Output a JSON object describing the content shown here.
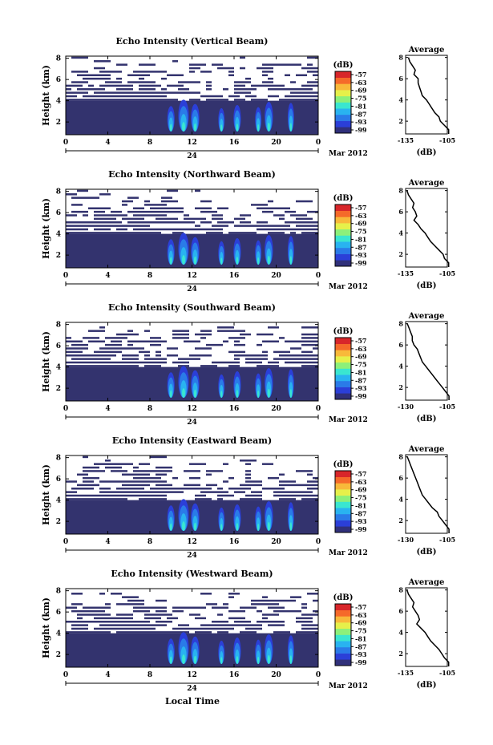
{
  "figure": {
    "x_axis_title": "Local Time",
    "date_label": "Mar 2012",
    "unit_label": "(dB)",
    "avg_title": "Average",
    "x_ticks": [
      "0",
      "4",
      "8",
      "12",
      "16",
      "20",
      "0"
    ],
    "day_label": "24",
    "height_ticks": [
      "2",
      "4",
      "6",
      "8"
    ],
    "colorbar_ticks": [
      "-57",
      "-63",
      "-69",
      "-75",
      "-81",
      "-87",
      "-93",
      "-99"
    ],
    "colors": {
      "noise": "#33336e",
      "colormap": [
        "#30307a",
        "#2b3fd8",
        "#2a7be8",
        "#29b3f0",
        "#3ae6d0",
        "#8cf07a",
        "#e6f04a",
        "#f8b93a",
        "#f56a2a",
        "#d8262a"
      ]
    }
  },
  "chart_data": [
    {
      "type": "heatmap",
      "title": "Echo Intensity (Vertical Beam)",
      "ylabel": "Height (km)",
      "xlim": [
        0,
        24
      ],
      "ylim": [
        0.8,
        8.2
      ],
      "clim": [
        -99,
        -57
      ],
      "profile": {
        "xlim": [
          -135,
          -105
        ],
        "xtick_labels": [
          "-135",
          "-105"
        ],
        "xlabel": "(dB)",
        "points": [
          [
            -104,
            0.8
          ],
          [
            -104,
            1.2
          ],
          [
            -107,
            1.6
          ],
          [
            -110,
            2.0
          ],
          [
            -111,
            2.4
          ],
          [
            -114,
            2.8
          ],
          [
            -116,
            3.2
          ],
          [
            -118,
            3.6
          ],
          [
            -120,
            4.0
          ],
          [
            -123,
            4.4
          ],
          [
            -124,
            4.8
          ],
          [
            -125,
            5.2
          ],
          [
            -126,
            5.6
          ],
          [
            -126,
            6.0
          ],
          [
            -129,
            6.4
          ],
          [
            -128,
            6.8
          ],
          [
            -130,
            7.2
          ],
          [
            -132,
            7.6
          ],
          [
            -133,
            8.0
          ]
        ]
      }
    },
    {
      "type": "heatmap",
      "title": "Echo Intensity (Northward Beam)",
      "ylabel": "Height (km)",
      "xlim": [
        0,
        24
      ],
      "ylim": [
        0.8,
        8.2
      ],
      "clim": [
        -99,
        -57
      ],
      "profile": {
        "xlim": [
          -135,
          -105
        ],
        "xtick_labels": [
          "-135",
          "-105"
        ],
        "xlabel": "(dB)",
        "points": [
          [
            -104,
            0.8
          ],
          [
            -104,
            1.2
          ],
          [
            -107,
            1.6
          ],
          [
            -108,
            2.0
          ],
          [
            -111,
            2.4
          ],
          [
            -114,
            2.8
          ],
          [
            -117,
            3.2
          ],
          [
            -119,
            3.6
          ],
          [
            -121,
            4.0
          ],
          [
            -124,
            4.4
          ],
          [
            -126,
            4.8
          ],
          [
            -129,
            5.2
          ],
          [
            -127,
            5.6
          ],
          [
            -128,
            6.0
          ],
          [
            -130,
            6.4
          ],
          [
            -129,
            6.8
          ],
          [
            -131,
            7.2
          ],
          [
            -133,
            7.6
          ],
          [
            -134,
            8.0
          ]
        ]
      }
    },
    {
      "type": "heatmap",
      "title": "Echo Intensity (Southward Beam)",
      "ylabel": "Height (km)",
      "xlim": [
        0,
        24
      ],
      "ylim": [
        0.8,
        8.2
      ],
      "clim": [
        -99,
        -57
      ],
      "profile": {
        "xlim": [
          -130,
          -105
        ],
        "xtick_labels": [
          "-130",
          "-105"
        ],
        "xlabel": "(dB)",
        "points": [
          [
            -104,
            0.8
          ],
          [
            -104,
            1.2
          ],
          [
            -106,
            1.6
          ],
          [
            -108,
            2.0
          ],
          [
            -110,
            2.4
          ],
          [
            -112,
            2.8
          ],
          [
            -114,
            3.2
          ],
          [
            -116,
            3.6
          ],
          [
            -118,
            4.0
          ],
          [
            -120,
            4.4
          ],
          [
            -121,
            4.8
          ],
          [
            -122,
            5.2
          ],
          [
            -123,
            5.6
          ],
          [
            -125,
            6.0
          ],
          [
            -126,
            6.4
          ],
          [
            -126,
            6.8
          ],
          [
            -127,
            7.2
          ],
          [
            -128,
            7.6
          ],
          [
            -129,
            8.0
          ]
        ]
      }
    },
    {
      "type": "heatmap",
      "title": "Echo Intensity (Eastward Beam)",
      "ylabel": "Height (km)",
      "xlim": [
        0,
        24
      ],
      "ylim": [
        0.8,
        8.2
      ],
      "clim": [
        -99,
        -57
      ],
      "profile": {
        "xlim": [
          -130,
          -105
        ],
        "xtick_labels": [
          "-130",
          "-105"
        ],
        "xlabel": "(dB)",
        "points": [
          [
            -104,
            0.8
          ],
          [
            -104,
            1.2
          ],
          [
            -106,
            1.6
          ],
          [
            -108,
            2.0
          ],
          [
            -110,
            2.4
          ],
          [
            -111,
            2.8
          ],
          [
            -114,
            3.2
          ],
          [
            -116,
            3.6
          ],
          [
            -118,
            4.0
          ],
          [
            -120,
            4.4
          ],
          [
            -121,
            4.8
          ],
          [
            -122,
            5.2
          ],
          [
            -123,
            5.6
          ],
          [
            -124,
            6.0
          ],
          [
            -125,
            6.4
          ],
          [
            -126,
            6.8
          ],
          [
            -127,
            7.2
          ],
          [
            -128,
            7.6
          ],
          [
            -129,
            8.0
          ]
        ]
      }
    },
    {
      "type": "heatmap",
      "title": "Echo Intensity (Westward Beam)",
      "ylabel": "Height (km)",
      "xlim": [
        0,
        24
      ],
      "ylim": [
        0.8,
        8.2
      ],
      "clim": [
        -99,
        -57
      ],
      "profile": {
        "xlim": [
          -135,
          -105
        ],
        "xtick_labels": [
          "-135",
          "-105"
        ],
        "xlabel": "(dB)",
        "points": [
          [
            -104,
            0.8
          ],
          [
            -104,
            1.2
          ],
          [
            -107,
            1.6
          ],
          [
            -109,
            2.0
          ],
          [
            -111,
            2.4
          ],
          [
            -114,
            2.8
          ],
          [
            -117,
            3.2
          ],
          [
            -119,
            3.6
          ],
          [
            -121,
            4.0
          ],
          [
            -124,
            4.4
          ],
          [
            -127,
            4.8
          ],
          [
            -125,
            5.2
          ],
          [
            -126,
            5.6
          ],
          [
            -128,
            6.0
          ],
          [
            -130,
            6.4
          ],
          [
            -129,
            6.8
          ],
          [
            -131,
            7.2
          ],
          [
            -133,
            7.6
          ],
          [
            -134,
            8.0
          ]
        ]
      }
    }
  ]
}
